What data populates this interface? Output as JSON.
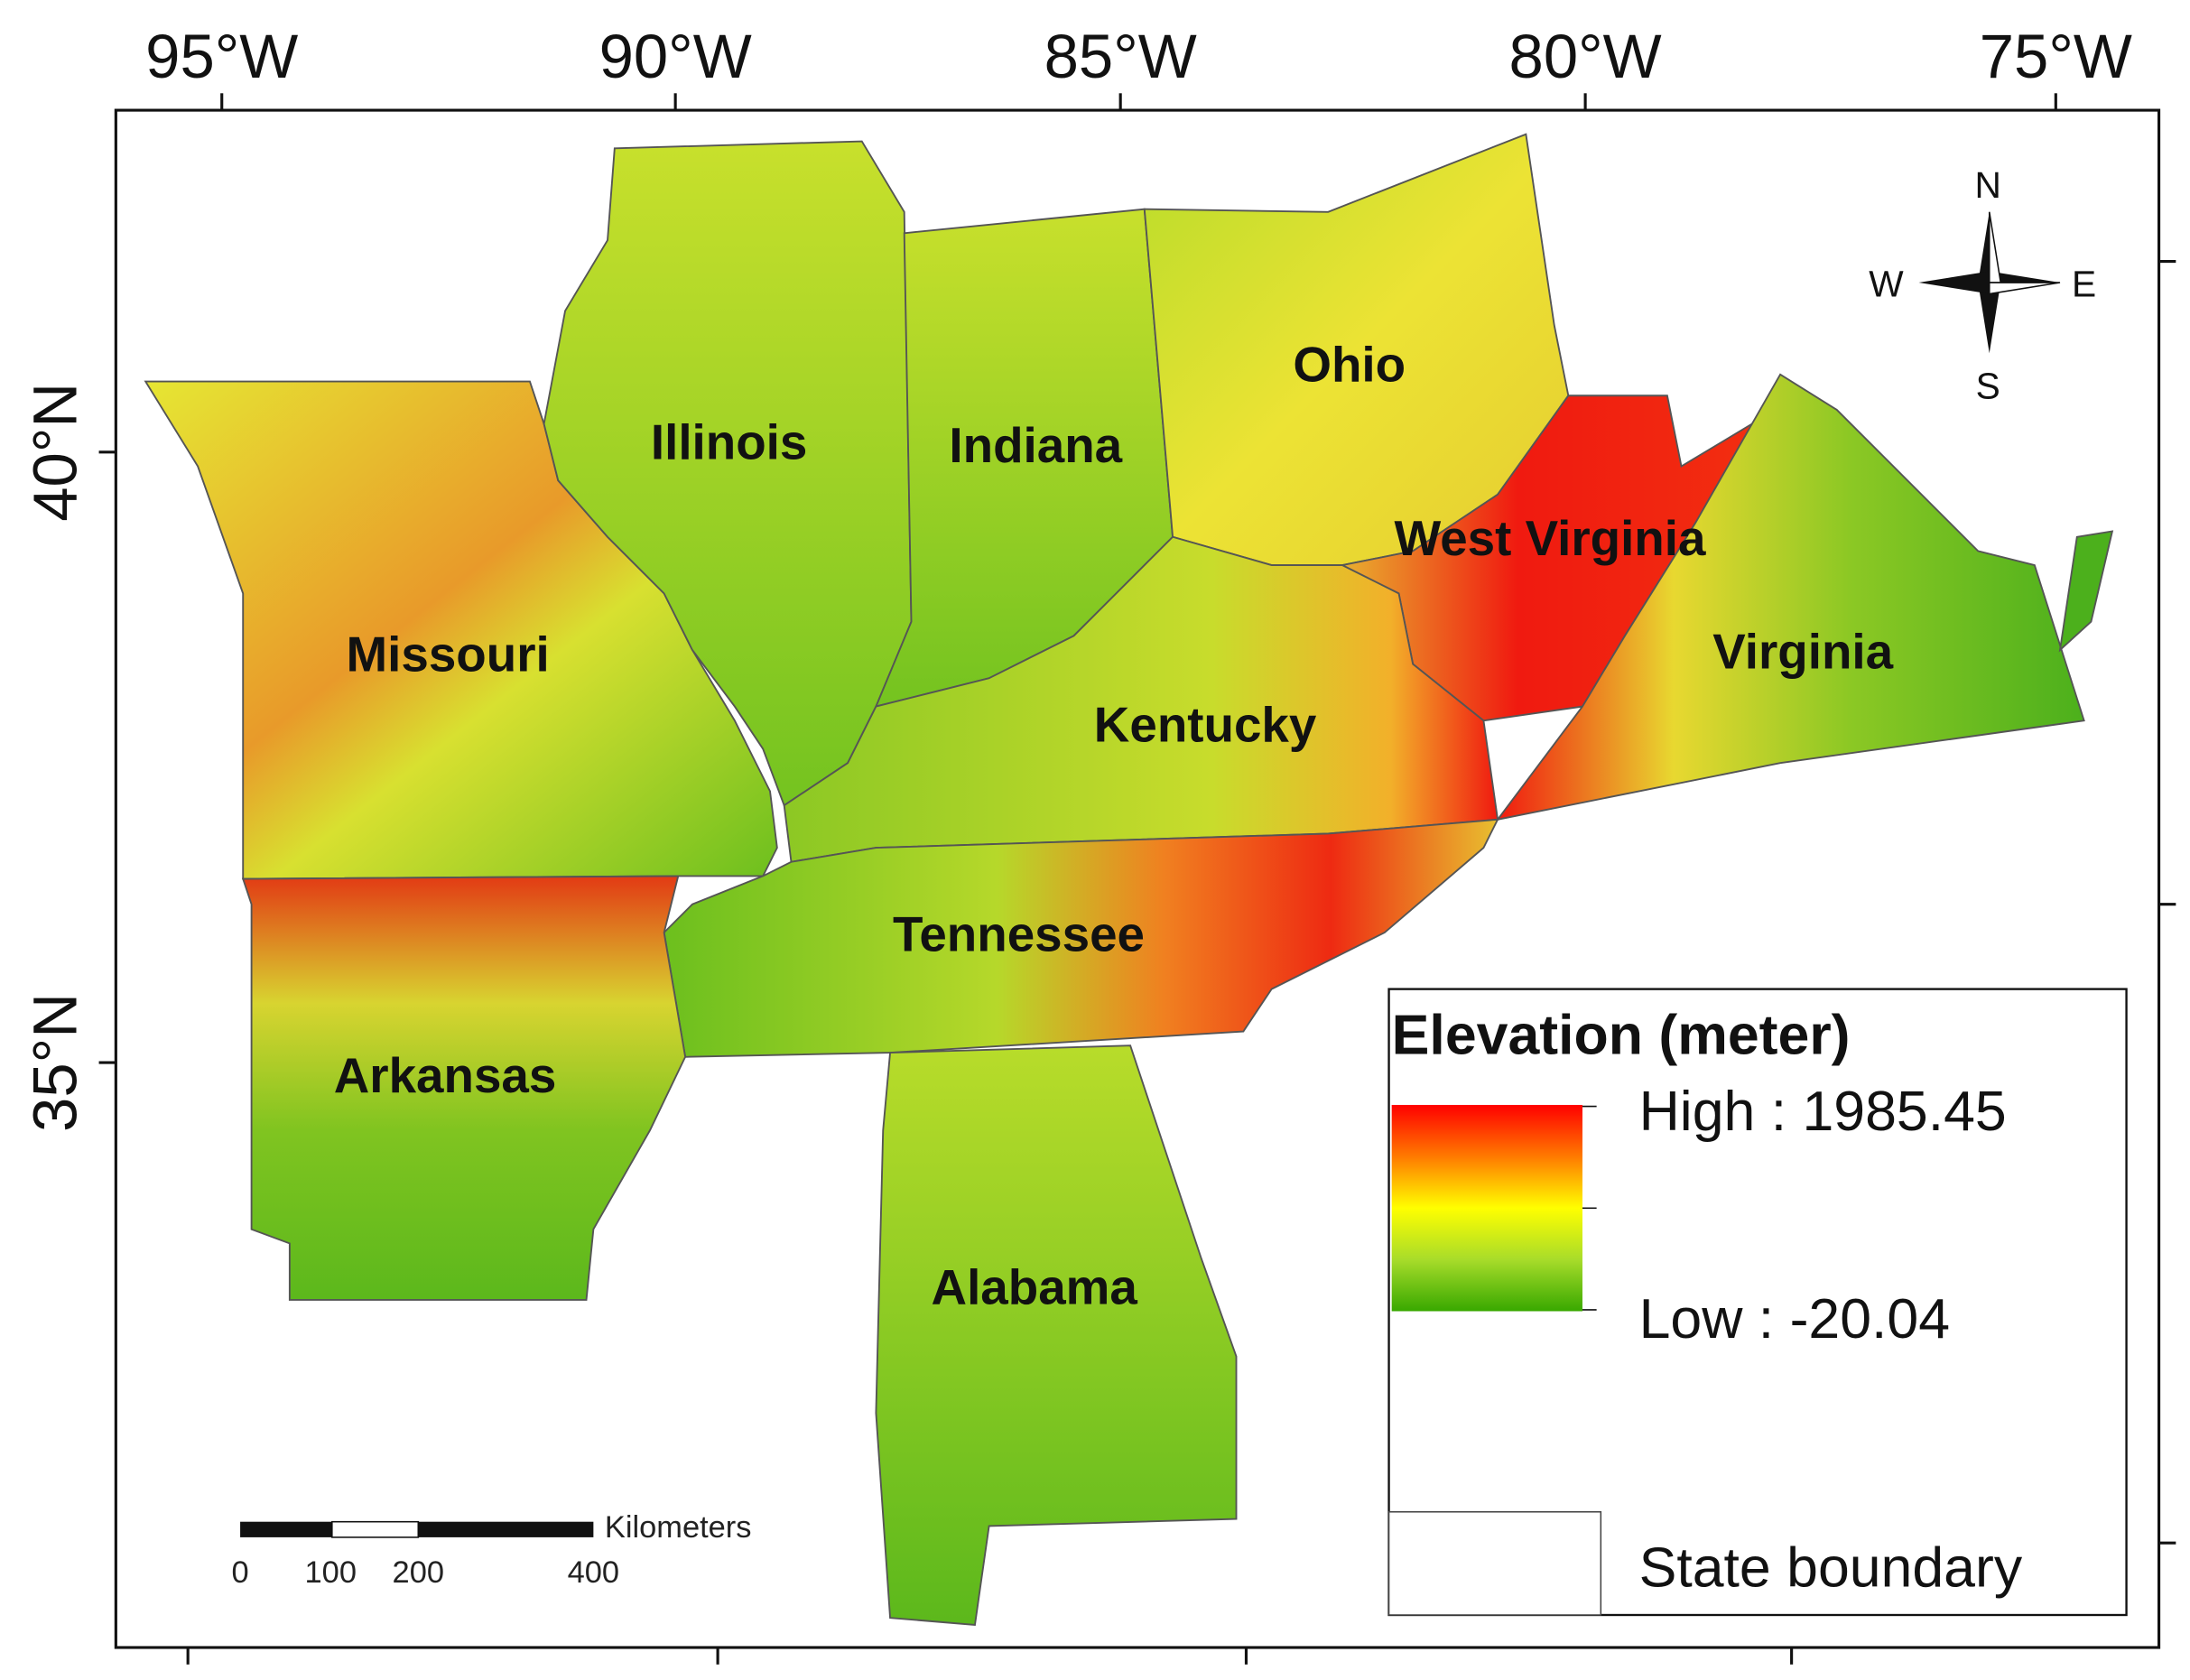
{
  "axes": {
    "top_labels": [
      "95°W",
      "90°W",
      "85°W",
      "80°W",
      "75°W"
    ],
    "left_labels": [
      "40°N",
      "35°N"
    ]
  },
  "states": [
    "Illinois",
    "Indiana",
    "Ohio",
    "Missouri",
    "West Virginia",
    "Virginia",
    "Kentucky",
    "Tennessee",
    "Arkansas",
    "Alabama"
  ],
  "legend": {
    "title": "Elevation (meter)",
    "high": "High : 1985.45",
    "low": "Low : -20.04",
    "boundary": "State boundary"
  },
  "compass": {
    "n": "N",
    "e": "E",
    "s": "S",
    "w": "W"
  },
  "scale_bar": {
    "unit": "Kilometers",
    "labels": [
      "0",
      "100",
      "200",
      "400"
    ]
  }
}
